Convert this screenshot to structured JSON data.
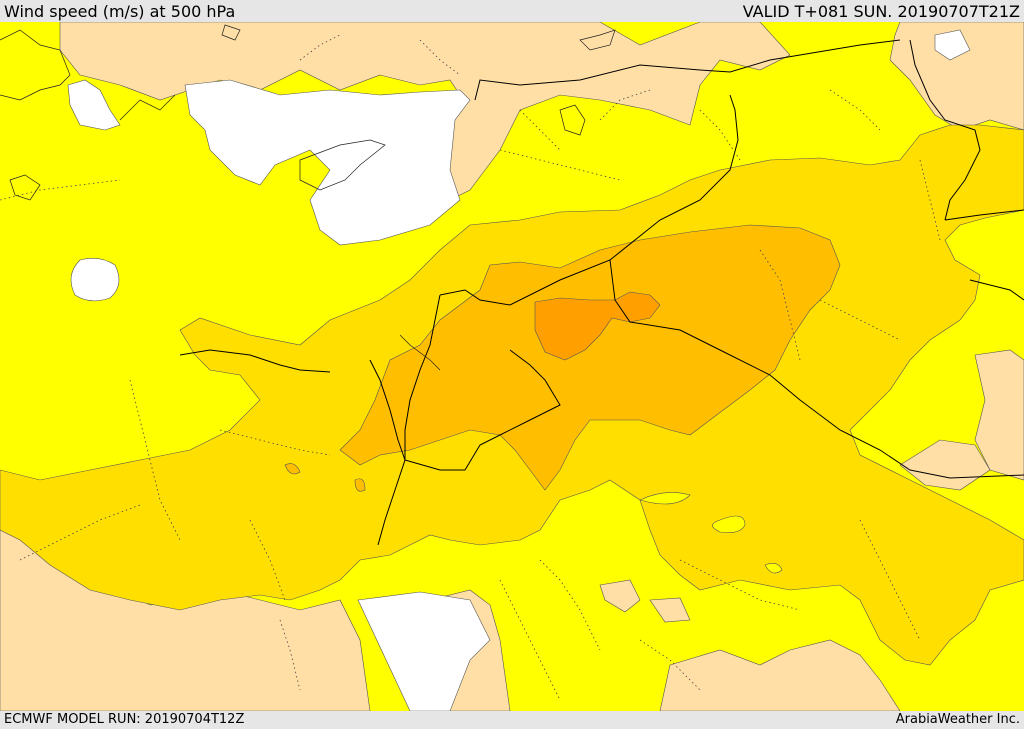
{
  "header": {
    "title": "Wind speed (m/s) at 500 hPa",
    "valid_time": "VALID T+081 SUN. 20190707T21Z"
  },
  "footer": {
    "model_run": "ECMWF MODEL RUN: 20190704T12Z",
    "credit": "ArabiaWeather Inc."
  },
  "map": {
    "region": "Eastern Mediterranean / Levant / Northern Arabia",
    "palette": {
      "calm_white": "#ffffff",
      "light_peach": "#ffdfa6",
      "yellow": "#ffff00",
      "gold": "#ffdf00",
      "amber": "#ffbf00",
      "orange": "#ffa000",
      "contour": "#555555",
      "border": "#000000",
      "admin": "#444444"
    }
  }
}
